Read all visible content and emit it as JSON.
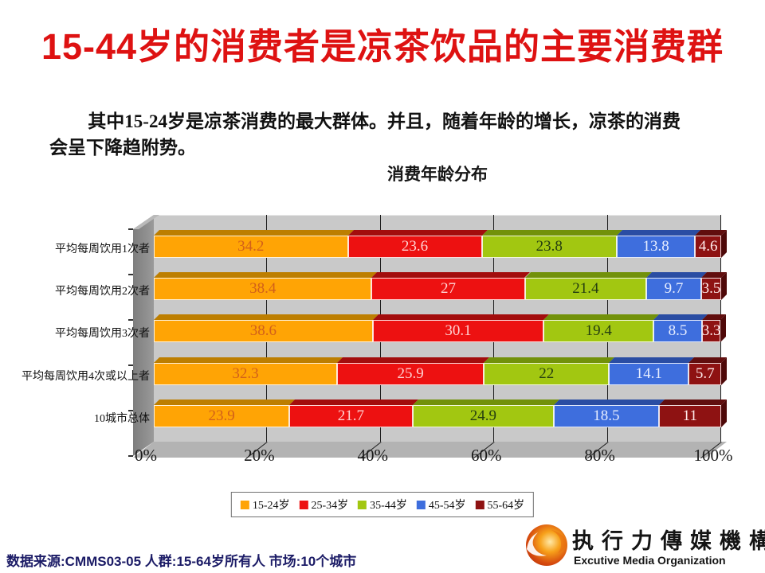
{
  "page": {
    "title": "15-44岁的消费者是凉茶饮品的主要消费群",
    "subtitle": "其中15-24岁是凉茶消费的最大群体。并且，随着年龄的增长，凉茶的消费会呈下降趋附势。"
  },
  "chart_data": {
    "type": "bar",
    "stacked": true,
    "orientation": "horizontal",
    "title": "消费年龄分布",
    "categories": [
      "平均每周饮用1次者",
      "平均每周饮用2次者",
      "平均每周饮用3次者",
      "平均每周饮用4次或以上者",
      "10城市总体"
    ],
    "series": [
      {
        "name": "15-24岁",
        "color": "#FFA405",
        "top_color": "#BD7E00",
        "label_color": "#D2601A",
        "values": [
          34.2,
          38.4,
          38.6,
          32.3,
          23.9
        ]
      },
      {
        "name": "25-34岁",
        "color": "#ED1111",
        "top_color": "#A30D0D",
        "label_color": "#FFD2D2",
        "values": [
          23.6,
          27,
          30.1,
          25.9,
          21.7
        ]
      },
      {
        "name": "35-44岁",
        "color": "#A2C711",
        "top_color": "#72910A",
        "label_color": "#263F10",
        "values": [
          23.8,
          21.4,
          19.4,
          22,
          24.9
        ]
      },
      {
        "name": "45-54岁",
        "color": "#3E6EDD",
        "top_color": "#2A4DA3",
        "label_color": "#E6EDFF",
        "values": [
          13.8,
          9.7,
          8.5,
          14.1,
          18.5
        ]
      },
      {
        "name": "55-64岁",
        "color": "#8E1212",
        "top_color": "#610E0E",
        "label_color": "#FFEAEA",
        "values": [
          4.6,
          3.5,
          3.3,
          5.7,
          11
        ]
      }
    ],
    "x_ticks": [
      "0%",
      "20%",
      "40%",
      "60%",
      "80%",
      "100%"
    ],
    "xlim": [
      0,
      100
    ],
    "grid": true,
    "legend_position": "bottom",
    "plot_background": "#C9C9C9"
  },
  "footer": {
    "source": "数据来源:CMMS03-05 人群:15-64岁所有人 市场:10个城市",
    "logo_cn": "执行力傳媒機構",
    "logo_en": "Excutive Media Organization"
  }
}
